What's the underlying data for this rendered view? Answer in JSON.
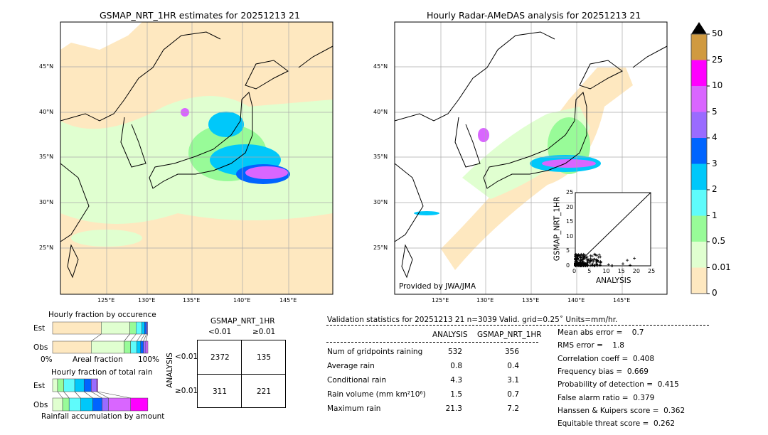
{
  "left_map": {
    "title": "GSMAP_NRT_1HR estimates for 20251213 21"
  },
  "right_map": {
    "title": "Hourly Radar-AMeDAS analysis for 20251213 21",
    "credit": "Provided by JWA/JMA"
  },
  "lat_labels": [
    "45°N",
    "40°N",
    "35°N",
    "30°N",
    "25°N"
  ],
  "lon_labels": [
    "125°E",
    "130°E",
    "135°E",
    "140°E",
    "145°E"
  ],
  "colorbar": {
    "ticks": [
      "0",
      "0.01",
      "0.5",
      "1",
      "2",
      "3",
      "4",
      "5",
      "10",
      "25",
      "50"
    ],
    "colors": [
      "#fee8c0",
      "#e0ffd0",
      "#98fb98",
      "#5ffbfb",
      "#00c8fa",
      "#0064ff",
      "#9a6bff",
      "#d966ff",
      "#ff00ff",
      "#d09a40"
    ],
    "extend_color": "#000000"
  },
  "scatter": {
    "xlabel": "ANALYSIS",
    "ylabel": "GSMAP_NRT_1HR",
    "ticks": [
      "0",
      "5",
      "10",
      "15",
      "20",
      "25"
    ],
    "xlim": [
      0,
      25
    ],
    "ylim": [
      0,
      25
    ]
  },
  "occurrence": {
    "title": "Hourly fraction by occurence",
    "xlabel": "Areal fraction",
    "x0": "0%",
    "x1": "100%",
    "rows": [
      "Est",
      "Obs"
    ],
    "est": [
      0.51,
      0.3,
      0.065,
      0.06,
      0.03,
      0.02,
      0.012
    ],
    "obs": [
      0.405,
      0.345,
      0.068,
      0.065,
      0.04,
      0.03,
      0.025,
      0.022
    ]
  },
  "total_rain": {
    "title": "Hourly fraction of total rain",
    "xlabel": "Rainfall accumulation by amount",
    "rows": [
      "Est",
      "Obs"
    ],
    "est": [
      0.052,
      0.065,
      0.115,
      0.098,
      0.075,
      0.058,
      0.012
    ],
    "obs": [
      0.105,
      0.068,
      0.12,
      0.128,
      0.098,
      0.068,
      0.232,
      0.18
    ]
  },
  "contingency": {
    "col_title": "GSMAP_NRT_1HR",
    "row_title": "ANALYSIS",
    "cols": [
      "<0.01",
      "≥0.01"
    ],
    "rows": [
      "<0.01",
      "≥0.01"
    ],
    "cells": [
      [
        "2372",
        "135"
      ],
      [
        "311",
        "221"
      ]
    ]
  },
  "validation": {
    "header": "Validation statistics for 20251213 21  n=3039 Valid. grid=0.25˚ Units=mm/hr.",
    "col_analysis": "ANALYSIS",
    "col_gsmap": "GSMAP_NRT_1HR",
    "rows": [
      {
        "label": "Num of gridpoints raining",
        "analysis": "532",
        "gsmap": "356"
      },
      {
        "label": "Average rain",
        "analysis": "0.8",
        "gsmap": "0.4"
      },
      {
        "label": "Conditional rain",
        "analysis": "4.3",
        "gsmap": "3.1"
      },
      {
        "label": "Rain volume (mm km²10⁶)",
        "analysis": "1.5",
        "gsmap": "0.7"
      },
      {
        "label": "Maximum rain",
        "analysis": "21.3",
        "gsmap": "7.2"
      }
    ],
    "scores": [
      "Mean abs error =    0.7",
      "RMS error =    1.8",
      "Correlation coeff =  0.408",
      "Frequency bias =  0.669",
      "Probability of detection =  0.415",
      "False alarm ratio =  0.379",
      "Hanssen & Kuipers score =  0.362",
      "Equitable threat score =  0.262"
    ]
  }
}
